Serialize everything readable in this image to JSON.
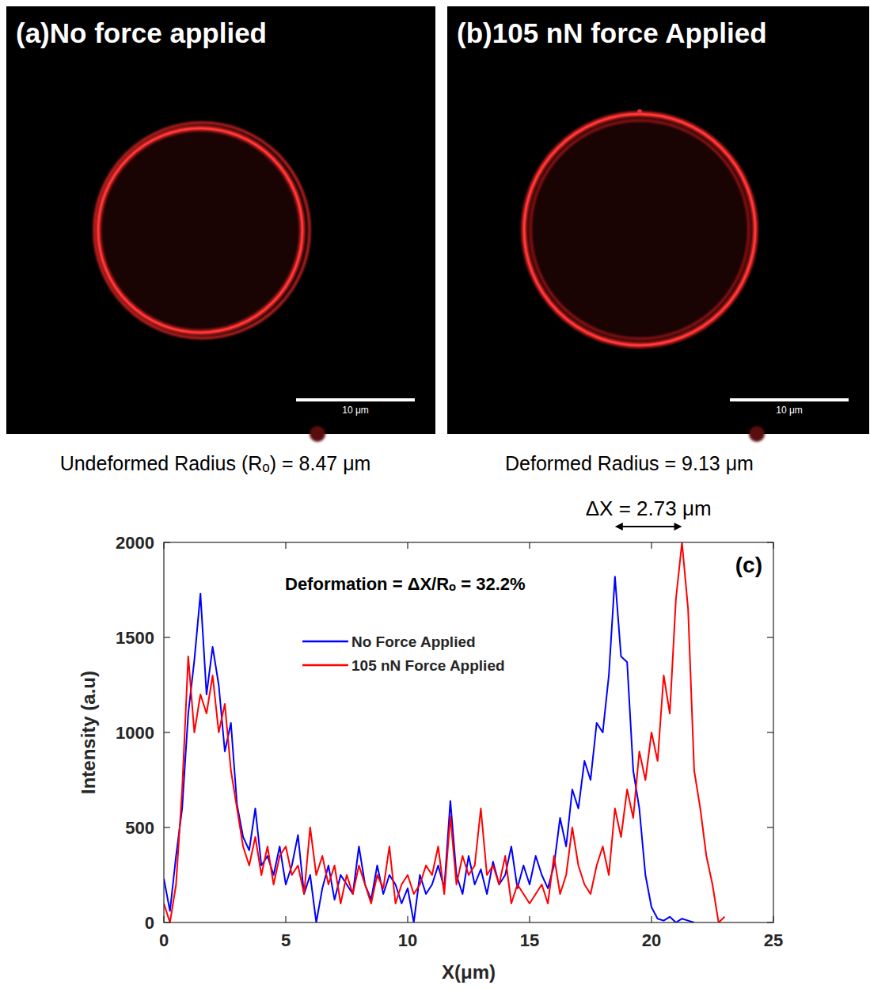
{
  "panels": [
    {
      "label": "(a)",
      "title": "No force applied",
      "scale_bar": "10 μm",
      "caption": "Undeformed Radius (Rₒ) = 8.47 μm"
    },
    {
      "label": "(b)",
      "title": "105 nN force Applied",
      "scale_bar": "10 μm",
      "caption": "Deformed Radius = 9.13 μm"
    }
  ],
  "chart_data": {
    "type": "line",
    "panel_label": "(c)",
    "x_label": "X(μm)",
    "y_label": "Intensity (a.u)",
    "annotations": [
      "Deformation = ΔX/Rₒ = 32.2%",
      "ΔX = 2.73 μm"
    ],
    "x": [
      0,
      0.25,
      0.5,
      0.75,
      1,
      1.25,
      1.5,
      1.75,
      2,
      2.25,
      2.5,
      2.75,
      3,
      3.25,
      3.5,
      3.75,
      4,
      4.25,
      4.5,
      4.75,
      5,
      5.25,
      5.5,
      5.75,
      6,
      6.25,
      6.5,
      6.75,
      7,
      7.25,
      7.5,
      7.75,
      8,
      8.25,
      8.5,
      8.75,
      9,
      9.25,
      9.5,
      9.75,
      10,
      10.25,
      10.5,
      10.75,
      11,
      11.25,
      11.5,
      11.75,
      12,
      12.25,
      12.5,
      12.75,
      13,
      13.25,
      13.5,
      13.75,
      14,
      14.25,
      14.5,
      14.75,
      15,
      15.25,
      15.5,
      15.75,
      16,
      16.25,
      16.5,
      16.75,
      17,
      17.25,
      17.5,
      17.75,
      18,
      18.25,
      18.5,
      18.75,
      19,
      19.25,
      19.5,
      19.75,
      20,
      20.25,
      20.5,
      20.75,
      21,
      21.25,
      21.5,
      21.75,
      22,
      22.25,
      22.5,
      22.75,
      23
    ],
    "series": [
      {
        "name": "No Force Applied",
        "color": "#0000ff",
        "values": [
          230,
          60,
          350,
          600,
          1100,
          1380,
          1730,
          1200,
          1450,
          1250,
          900,
          1050,
          620,
          450,
          380,
          600,
          300,
          350,
          250,
          400,
          200,
          300,
          460,
          150,
          250,
          0,
          180,
          300,
          120,
          250,
          200,
          150,
          400,
          200,
          120,
          300,
          150,
          250,
          200,
          100,
          180,
          0,
          250,
          150,
          200,
          300,
          180,
          640,
          250,
          150,
          350,
          200,
          280,
          150,
          320,
          200,
          250,
          400,
          180,
          300,
          200,
          350,
          250,
          180,
          300,
          550,
          400,
          700,
          600,
          850,
          750,
          1050,
          1000,
          1300,
          1820,
          1400,
          1370,
          800,
          600,
          250,
          80,
          20,
          10,
          30,
          0,
          20,
          10,
          0,
          null,
          null,
          null,
          null,
          null
        ]
      },
      {
        "name": "105 nN Force Applied",
        "color": "#ff0000",
        "values": [
          100,
          0,
          200,
          700,
          1400,
          1000,
          1200,
          1100,
          1300,
          1000,
          1150,
          800,
          600,
          400,
          300,
          450,
          250,
          400,
          200,
          350,
          400,
          250,
          300,
          150,
          500,
          250,
          350,
          200,
          300,
          100,
          250,
          150,
          300,
          200,
          100,
          250,
          180,
          400,
          100,
          200,
          250,
          150,
          200,
          300,
          250,
          400,
          150,
          560,
          200,
          350,
          250,
          300,
          600,
          250,
          300,
          200,
          350,
          100,
          200,
          150,
          100,
          150,
          200,
          100,
          350,
          150,
          250,
          500,
          300,
          200,
          150,
          300,
          400,
          250,
          600,
          450,
          700,
          550,
          900,
          750,
          1000,
          850,
          1300,
          1100,
          1700,
          2000,
          1650,
          800,
          600,
          350,
          200,
          0,
          30
        ]
      }
    ],
    "xlim": [
      0,
      25
    ],
    "xticks": [
      0,
      5,
      10,
      15,
      20,
      25
    ],
    "ylim": [
      0,
      2000
    ],
    "yticks": [
      0,
      500,
      1000,
      1500,
      2000
    ],
    "grid": false,
    "legend": "upper left"
  }
}
